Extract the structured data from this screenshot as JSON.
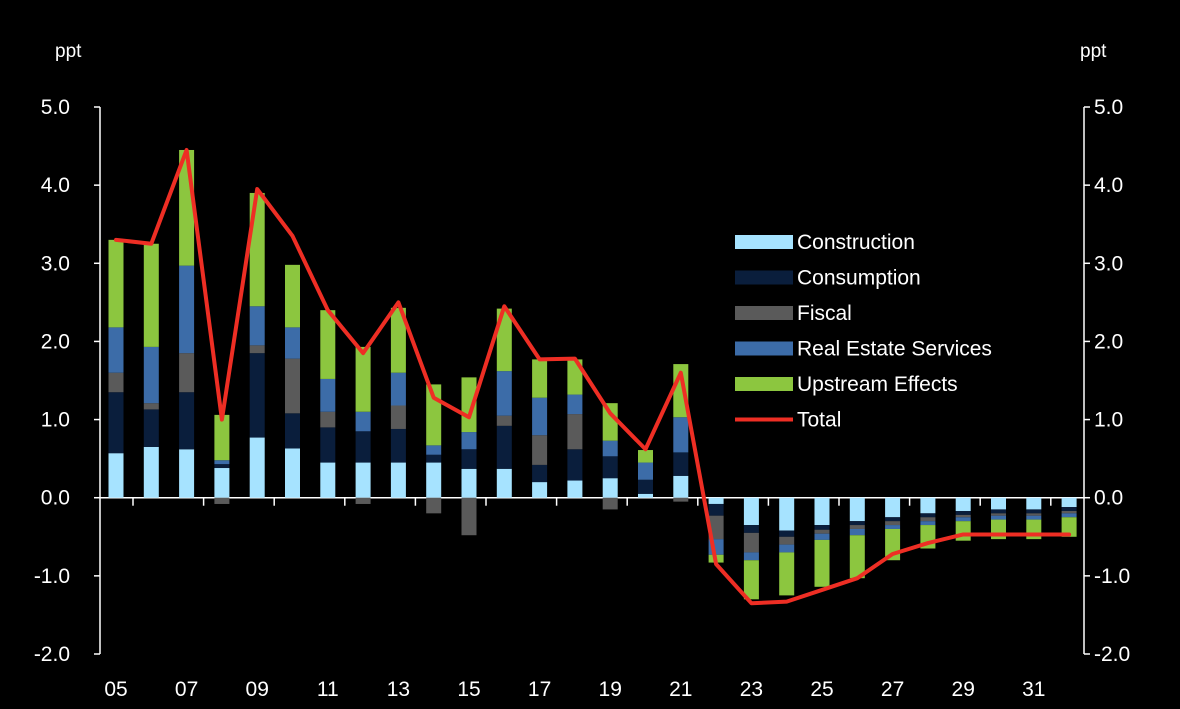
{
  "chart_data": {
    "type": "bar",
    "stacked": true,
    "left_axis_label": "ppt",
    "right_axis_label": "ppt",
    "ylim": [
      -2.0,
      5.0
    ],
    "y_ticks": [
      "5.0",
      "4.0",
      "3.0",
      "2.0",
      "1.0",
      "0.0",
      "-1.0",
      "-2.0"
    ],
    "x": [
      "05",
      "06",
      "07",
      "08",
      "09",
      "10",
      "11",
      "12",
      "13",
      "14",
      "15",
      "16",
      "17",
      "18",
      "19",
      "20",
      "21",
      "22",
      "23",
      "24",
      "25",
      "26",
      "27",
      "28",
      "29",
      "30",
      "31",
      "32"
    ],
    "x_tick_labels": [
      "05",
      "07",
      "09",
      "11",
      "13",
      "15",
      "17",
      "19",
      "21",
      "23",
      "25",
      "27",
      "29",
      "31"
    ],
    "series": [
      {
        "name": "Construction",
        "color": "#a6e3ff",
        "values": [
          0.57,
          0.65,
          0.62,
          0.38,
          0.77,
          0.63,
          0.45,
          0.45,
          0.45,
          0.45,
          0.37,
          0.37,
          0.2,
          0.22,
          0.25,
          0.05,
          0.28,
          -0.08,
          -0.35,
          -0.42,
          -0.35,
          -0.3,
          -0.25,
          -0.2,
          -0.17,
          -0.15,
          -0.15,
          -0.12
        ]
      },
      {
        "name": "Consumption",
        "color": "#0a1e3c",
        "values": [
          0.78,
          0.48,
          0.73,
          0.05,
          1.08,
          0.45,
          0.45,
          0.4,
          0.43,
          0.1,
          0.25,
          0.55,
          0.22,
          0.4,
          0.28,
          0.18,
          0.3,
          -0.15,
          -0.1,
          -0.08,
          -0.06,
          -0.05,
          -0.05,
          -0.05,
          -0.05,
          -0.05,
          -0.05,
          -0.05
        ]
      },
      {
        "name": "Fiscal",
        "color": "#5a5a5a",
        "values": [
          0.25,
          0.08,
          0.5,
          -0.08,
          0.1,
          0.7,
          0.2,
          -0.08,
          0.3,
          -0.2,
          -0.48,
          0.13,
          0.38,
          0.45,
          -0.15,
          0.0,
          -0.05,
          -0.3,
          -0.25,
          -0.1,
          -0.05,
          -0.05,
          -0.05,
          -0.05,
          -0.03,
          -0.03,
          -0.03,
          -0.03
        ]
      },
      {
        "name": "Real Estate Services",
        "color": "#3c6ca8",
        "values": [
          0.58,
          0.72,
          1.12,
          0.05,
          0.5,
          0.4,
          0.42,
          0.25,
          0.42,
          0.12,
          0.22,
          0.57,
          0.48,
          0.25,
          0.2,
          0.22,
          0.45,
          -0.2,
          -0.1,
          -0.1,
          -0.08,
          -0.08,
          -0.05,
          -0.05,
          -0.05,
          -0.05,
          -0.05,
          -0.05
        ]
      },
      {
        "name": "Upstream Effects",
        "color": "#8cc63f",
        "values": [
          1.12,
          1.32,
          1.48,
          0.58,
          1.45,
          0.8,
          0.88,
          0.83,
          0.83,
          0.78,
          0.7,
          0.8,
          0.49,
          0.45,
          0.48,
          0.16,
          0.68,
          -0.1,
          -0.5,
          -0.55,
          -0.6,
          -0.55,
          -0.4,
          -0.3,
          -0.25,
          -0.25,
          -0.25,
          -0.25
        ]
      }
    ],
    "total": {
      "name": "Total",
      "color": "#ee2e24",
      "values": [
        3.3,
        3.25,
        4.45,
        1.0,
        3.95,
        3.35,
        2.4,
        1.85,
        2.5,
        1.28,
        1.03,
        2.45,
        1.77,
        1.78,
        1.08,
        0.62,
        1.6,
        -0.85,
        -1.35,
        -1.33,
        -1.18,
        -1.03,
        -0.72,
        -0.58,
        -0.47,
        -0.47,
        -0.47,
        -0.47
      ]
    },
    "legend": [
      {
        "label": "Construction",
        "color": "#a6e3ff",
        "kind": "bar"
      },
      {
        "label": "Consumption",
        "color": "#0a1e3c",
        "kind": "bar"
      },
      {
        "label": "Fiscal",
        "color": "#5a5a5a",
        "kind": "bar"
      },
      {
        "label": "Real Estate Services",
        "color": "#3c6ca8",
        "kind": "bar"
      },
      {
        "label": "Upstream Effects",
        "color": "#8cc63f",
        "kind": "bar"
      },
      {
        "label": "Total",
        "color": "#ee2e24",
        "kind": "line"
      }
    ],
    "legend_position": "center-right"
  }
}
